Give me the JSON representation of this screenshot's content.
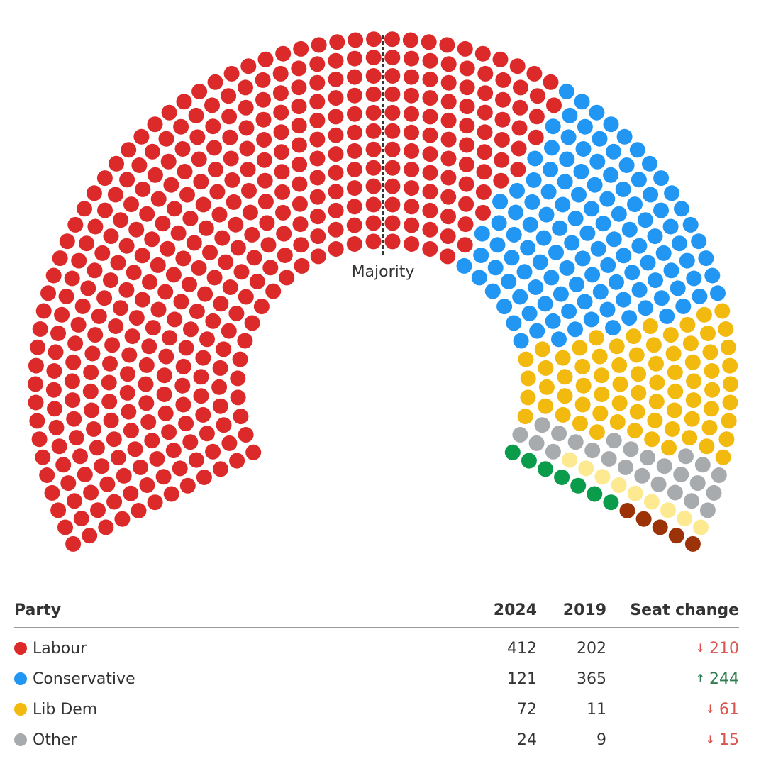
{
  "chart_data": {
    "type": "pie",
    "layout": "hemicycle",
    "total_seats": 650,
    "majority_label": "Majority",
    "series": [
      {
        "party": "Labour",
        "seats": 412,
        "color": "#dc2a2a"
      },
      {
        "party": "Conservative",
        "seats": 121,
        "color": "#2196f3"
      },
      {
        "party": "Lib Dem",
        "seats": 72,
        "color": "#f2b90f"
      },
      {
        "party": "",
        "seats": 24,
        "color": "#a8abae"
      },
      {
        "party": "",
        "seats": 9,
        "color": "#fde98f"
      },
      {
        "party": "",
        "seats": 7,
        "color": "#0a9b4b"
      },
      {
        "party": "",
        "seats": 5,
        "color": "#9b3208"
      }
    ]
  },
  "table": {
    "headers": {
      "party": "Party",
      "y2024": "2024",
      "y2019": "2019",
      "change": "Seat change"
    },
    "rows": [
      {
        "party": "Labour",
        "color": "#dc2a2a",
        "y2024": "412",
        "y2019": "202",
        "direction": "down",
        "arrow": "↓",
        "change": "210"
      },
      {
        "party": "Conservative",
        "color": "#2196f3",
        "y2024": "121",
        "y2019": "365",
        "direction": "up",
        "arrow": "↑",
        "change": "244"
      },
      {
        "party": "Lib Dem",
        "color": "#f2b90f",
        "y2024": "72",
        "y2019": "11",
        "direction": "down",
        "arrow": "↓",
        "change": "61"
      },
      {
        "party": "Other",
        "color": "#a8abae",
        "y2024": "24",
        "y2019": "9",
        "direction": "down",
        "arrow": "↓",
        "change": "15"
      }
    ],
    "change_colors": {
      "up": "#2e7d4f",
      "down": "#d9534f"
    }
  }
}
